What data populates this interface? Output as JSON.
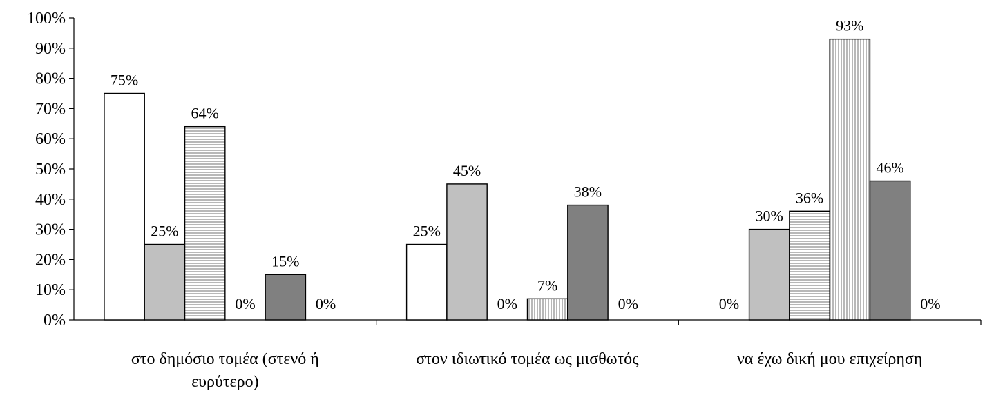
{
  "chart_data": {
    "type": "bar",
    "title": "",
    "xlabel": "",
    "ylabel": "",
    "ylim": [
      0,
      100
    ],
    "y_ticks": [
      "0%",
      "10%",
      "20%",
      "30%",
      "40%",
      "50%",
      "60%",
      "70%",
      "80%",
      "90%",
      "100%"
    ],
    "categories": [
      [
        "στο δημόσιο τομέα (στενό ή",
        "ευρύτερο)"
      ],
      [
        "στον ιδιωτικό τομέα ως μισθωτός"
      ],
      [
        "να έχω δική μου επιχείρηση"
      ]
    ],
    "series": [
      {
        "values": [
          75,
          25,
          0
        ],
        "labels": [
          "75%",
          "25%",
          "0%"
        ],
        "fill": "#ffffff",
        "pattern": "none"
      },
      {
        "values": [
          25,
          45,
          30
        ],
        "labels": [
          "25%",
          "45%",
          "30%"
        ],
        "fill": "#c0c0c0",
        "pattern": "none"
      },
      {
        "values": [
          64,
          0,
          36
        ],
        "labels": [
          "64%",
          "0%",
          "36%"
        ],
        "fill": "#ffffff",
        "pattern": "horizontal-lines"
      },
      {
        "values": [
          0,
          7,
          93
        ],
        "labels": [
          "0%",
          "7%",
          "93%"
        ],
        "fill": "#ffffff",
        "pattern": "vertical-lines"
      },
      {
        "values": [
          15,
          38,
          46
        ],
        "labels": [
          "15%",
          "38%",
          "46%"
        ],
        "fill": "#808080",
        "pattern": "none"
      },
      {
        "values": [
          0,
          0,
          0
        ],
        "labels": [
          "0%",
          "0%",
          "0%"
        ],
        "fill": "#ffffff",
        "pattern": "none"
      }
    ],
    "grid": false,
    "legend": "none"
  }
}
